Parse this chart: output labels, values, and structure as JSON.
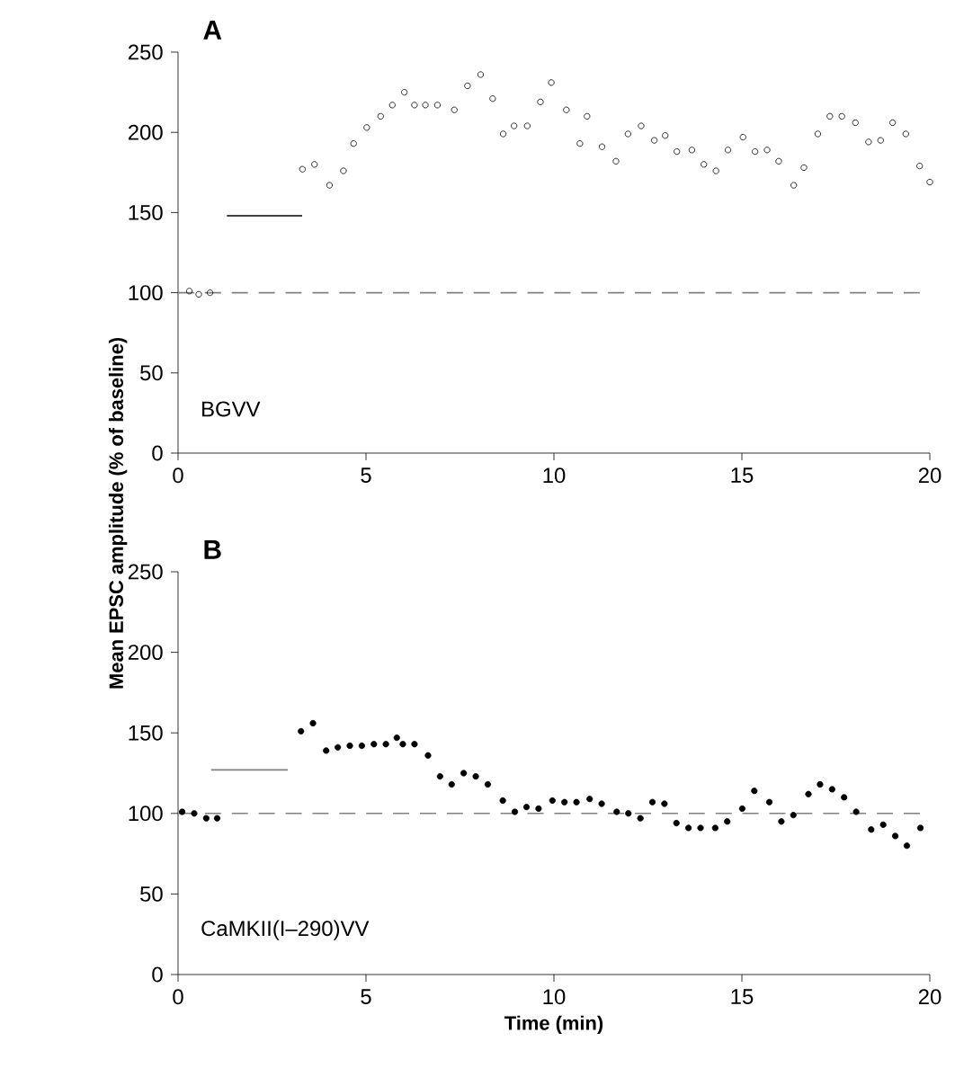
{
  "chart_data": [
    {
      "type": "scatter",
      "title": "A",
      "ylabel": "Mean EPSC amplitude (% of baseline)",
      "annotations": [
        "BGVV"
      ],
      "marker": "circle",
      "xlim": [
        0,
        20
      ],
      "ylim": [
        0,
        250
      ],
      "xticks": [
        0,
        5,
        10,
        15,
        20
      ],
      "yticks": [
        0,
        50,
        100,
        150,
        200,
        250
      ],
      "ref_lines": [
        {
          "axis": "y",
          "value": 100,
          "color": "#808080",
          "line_style": "dashed"
        }
      ],
      "series": [
        {
          "color": "#000000",
          "x": [
            0.3,
            0.55,
            0.85,
            3.31,
            3.63,
            4.03,
            4.4,
            4.67,
            5.02,
            5.39,
            5.7,
            6.02,
            6.29,
            6.58,
            6.9,
            7.35,
            7.7,
            8.05,
            8.37,
            8.65,
            8.94,
            9.29,
            9.64,
            9.93,
            10.33,
            10.69,
            10.88,
            11.28,
            11.65,
            11.97,
            12.32,
            12.67,
            12.96,
            13.27,
            13.67,
            13.99,
            14.31,
            14.63,
            15.03,
            15.35,
            15.67,
            15.98,
            16.38,
            16.65,
            17.02,
            17.34,
            17.66,
            18.02,
            18.37,
            18.69,
            19.01,
            19.36,
            19.73,
            20.0
          ],
          "values": [
            101,
            99,
            100,
            177,
            180,
            167,
            176,
            193,
            203,
            210,
            217,
            225,
            217,
            217,
            217,
            214,
            229,
            236,
            221,
            199,
            204,
            204,
            219,
            231,
            214,
            193,
            210,
            191,
            182,
            199,
            204,
            195,
            198,
            188,
            189,
            180,
            176,
            189,
            197,
            188,
            189,
            182,
            167,
            178,
            199,
            210,
            210,
            206,
            194,
            195,
            206,
            199,
            179,
            169
          ]
        },
        {
          "type": "line",
          "marker": "none",
          "color": "#000000",
          "x": [
            1.3,
            3.3
          ],
          "values": [
            148,
            148
          ]
        }
      ]
    },
    {
      "type": "scatter",
      "title": "B",
      "xlabel": "Time (min)",
      "annotations": [
        "CaMKII(I–290)VV"
      ],
      "marker": "circle",
      "xlim": [
        0,
        20
      ],
      "ylim": [
        0,
        250
      ],
      "xticks": [
        0,
        5,
        10,
        15,
        20
      ],
      "yticks": [
        0,
        50,
        100,
        150,
        200,
        250
      ],
      "ref_lines": [
        {
          "axis": "y",
          "value": 100,
          "color": "#808080",
          "line_style": "dashed"
        }
      ],
      "series": [
        {
          "color": "#000000",
          "x": [
            0.11,
            0.43,
            0.75,
            1.04,
            3.27,
            3.59,
            3.94,
            4.25,
            4.57,
            4.89,
            5.21,
            5.53,
            5.82,
            5.98,
            6.29,
            6.65,
            6.97,
            7.28,
            7.6,
            7.92,
            8.24,
            8.64,
            8.96,
            9.27,
            9.59,
            9.96,
            10.28,
            10.6,
            10.95,
            11.27,
            11.67,
            11.98,
            12.3,
            12.62,
            12.94,
            13.26,
            13.58,
            13.9,
            14.29,
            14.61,
            15.01,
            15.33,
            15.73,
            16.05,
            16.37,
            16.77,
            17.08,
            17.4,
            17.72,
            18.04,
            18.44,
            18.76,
            19.08,
            19.39,
            19.75
          ],
          "values": [
            101,
            100,
            97,
            97,
            151,
            156,
            139,
            141,
            142,
            142,
            143,
            143,
            147,
            143,
            143,
            136,
            123,
            118,
            125,
            123,
            118,
            108,
            101,
            104,
            103,
            108,
            107,
            107,
            109,
            106,
            101,
            100,
            97,
            107,
            106,
            94,
            91,
            91,
            91,
            95,
            103,
            114,
            107,
            95,
            99,
            112,
            118,
            115,
            110,
            101,
            90,
            93,
            86,
            80,
            91
          ]
        },
        {
          "type": "line",
          "marker": "none",
          "color": "#808080",
          "x": [
            0.88,
            2.92
          ],
          "values": [
            127,
            127
          ]
        }
      ]
    }
  ]
}
